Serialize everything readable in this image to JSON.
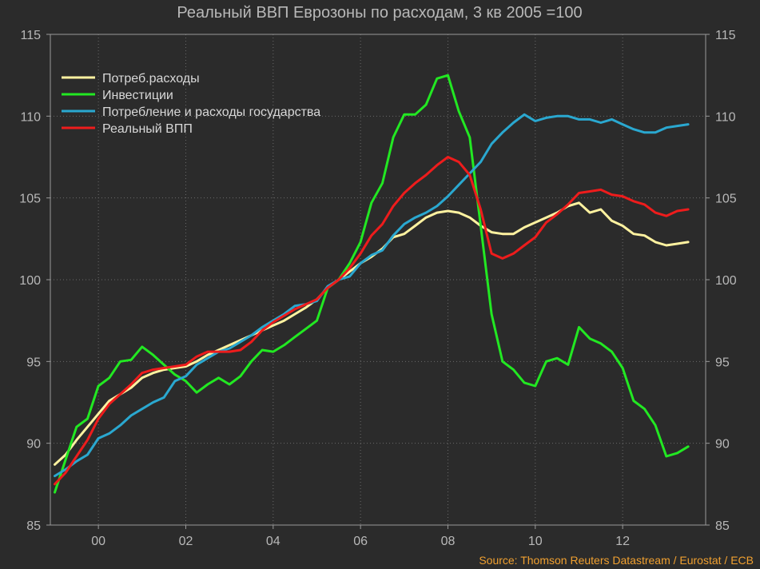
{
  "chart_data": {
    "type": "line",
    "title": "Реальный ВВП Еврозоны по расходам, 3 кв 2005 =100",
    "source": "Source: Thomson Reuters Datastream / Eurostat / ECB",
    "x_ticks": [
      {
        "value": 2000,
        "label": "00"
      },
      {
        "value": 2002,
        "label": "02"
      },
      {
        "value": 2004,
        "label": "04"
      },
      {
        "value": 2006,
        "label": "06"
      },
      {
        "value": 2008,
        "label": "08"
      },
      {
        "value": 2010,
        "label": "10"
      },
      {
        "value": 2012,
        "label": "12"
      }
    ],
    "y_ticks": [
      85,
      90,
      95,
      100,
      105,
      110,
      115
    ],
    "xlim": [
      1998.9,
      2013.9
    ],
    "ylim": [
      85,
      115
    ],
    "grid": true,
    "legend_position": "top-left",
    "series": [
      {
        "name": "Потреб.расходы",
        "color": "#fff2a0",
        "x": [
          1999.0,
          1999.25,
          1999.5,
          1999.75,
          2000.0,
          2000.25,
          2000.5,
          2000.75,
          2001.0,
          2001.25,
          2001.5,
          2001.75,
          2002.0,
          2002.25,
          2002.5,
          2002.75,
          2003.0,
          2003.25,
          2003.5,
          2003.75,
          2004.0,
          2004.25,
          2004.5,
          2004.75,
          2005.0,
          2005.25,
          2005.5,
          2005.75,
          2006.0,
          2006.25,
          2006.5,
          2006.75,
          2007.0,
          2007.25,
          2007.5,
          2007.75,
          2008.0,
          2008.25,
          2008.5,
          2008.75,
          2009.0,
          2009.25,
          2009.5,
          2009.75,
          2010.0,
          2010.25,
          2010.5,
          2010.75,
          2011.0,
          2011.25,
          2011.5,
          2011.75,
          2012.0,
          2012.25,
          2012.5,
          2012.75,
          2013.0,
          2013.25,
          2013.5
        ],
        "values": [
          88.7,
          89.3,
          90.2,
          91.0,
          91.8,
          92.6,
          93.0,
          93.4,
          94.0,
          94.3,
          94.5,
          94.6,
          94.7,
          95.0,
          95.4,
          95.7,
          96.0,
          96.3,
          96.6,
          96.9,
          97.2,
          97.5,
          97.9,
          98.3,
          98.8,
          99.5,
          100.0,
          100.5,
          101.0,
          101.4,
          101.9,
          102.6,
          102.8,
          103.3,
          103.8,
          104.1,
          104.2,
          104.1,
          103.8,
          103.3,
          102.9,
          102.8,
          102.8,
          103.2,
          103.5,
          103.8,
          104.1,
          104.5,
          104.7,
          104.1,
          104.3,
          103.6,
          103.3,
          102.8,
          102.7,
          102.3,
          102.1,
          102.2,
          102.3
        ]
      },
      {
        "name": "Инвестиции",
        "color": "#22e822",
        "x": [
          1999.0,
          1999.25,
          1999.5,
          1999.75,
          2000.0,
          2000.25,
          2000.5,
          2000.75,
          2001.0,
          2001.25,
          2001.5,
          2001.75,
          2002.0,
          2002.25,
          2002.5,
          2002.75,
          2003.0,
          2003.25,
          2003.5,
          2003.75,
          2004.0,
          2004.25,
          2004.5,
          2004.75,
          2005.0,
          2005.25,
          2005.5,
          2005.75,
          2006.0,
          2006.25,
          2006.5,
          2006.75,
          2007.0,
          2007.25,
          2007.5,
          2007.75,
          2008.0,
          2008.25,
          2008.5,
          2008.75,
          2009.0,
          2009.25,
          2009.5,
          2009.75,
          2010.0,
          2010.25,
          2010.5,
          2010.75,
          2011.0,
          2011.25,
          2011.5,
          2011.75,
          2012.0,
          2012.25,
          2012.5,
          2012.75,
          2013.0,
          2013.25,
          2013.5
        ],
        "values": [
          87.0,
          89.0,
          91.0,
          91.5,
          93.5,
          94.0,
          95.0,
          95.1,
          95.9,
          95.4,
          94.8,
          94.2,
          93.8,
          93.1,
          93.6,
          94.0,
          93.6,
          94.1,
          95.0,
          95.7,
          95.6,
          96.0,
          96.5,
          97.0,
          97.5,
          99.5,
          100.0,
          101.0,
          102.3,
          104.7,
          105.9,
          108.7,
          110.1,
          110.1,
          110.7,
          112.3,
          112.5,
          110.3,
          108.7,
          103.3,
          97.9,
          95.0,
          94.5,
          93.7,
          93.5,
          95.0,
          95.2,
          94.8,
          97.1,
          96.4,
          96.1,
          95.6,
          94.6,
          92.6,
          92.1,
          91.1,
          89.2,
          89.4,
          89.8
        ]
      },
      {
        "name": "Потребление и расходы государства",
        "color": "#2aa8d0",
        "x": [
          1999.0,
          1999.25,
          1999.5,
          1999.75,
          2000.0,
          2000.25,
          2000.5,
          2000.75,
          2001.0,
          2001.25,
          2001.5,
          2001.75,
          2002.0,
          2002.25,
          2002.5,
          2002.75,
          2003.0,
          2003.25,
          2003.5,
          2003.75,
          2004.0,
          2004.25,
          2004.5,
          2004.75,
          2005.0,
          2005.25,
          2005.5,
          2005.75,
          2006.0,
          2006.25,
          2006.5,
          2006.75,
          2007.0,
          2007.25,
          2007.5,
          2007.75,
          2008.0,
          2008.25,
          2008.5,
          2008.75,
          2009.0,
          2009.25,
          2009.5,
          2009.75,
          2010.0,
          2010.25,
          2010.5,
          2010.75,
          2011.0,
          2011.25,
          2011.5,
          2011.75,
          2012.0,
          2012.25,
          2012.5,
          2012.75,
          2013.0,
          2013.25,
          2013.5
        ],
        "values": [
          88.0,
          88.4,
          88.9,
          89.3,
          90.3,
          90.6,
          91.1,
          91.7,
          92.1,
          92.5,
          92.8,
          93.8,
          94.1,
          94.8,
          95.2,
          95.6,
          95.8,
          96.2,
          96.6,
          97.1,
          97.5,
          97.9,
          98.4,
          98.5,
          98.7,
          99.6,
          100.0,
          100.2,
          101.0,
          101.5,
          101.8,
          102.7,
          103.4,
          103.8,
          104.1,
          104.5,
          105.1,
          105.8,
          106.5,
          107.2,
          108.3,
          109.0,
          109.6,
          110.1,
          109.7,
          109.9,
          110.0,
          110.0,
          109.8,
          109.8,
          109.6,
          109.8,
          109.5,
          109.2,
          109.0,
          109.0,
          109.3,
          109.4,
          109.5
        ]
      },
      {
        "name": "Реальный ВПП",
        "color": "#ee1c1c",
        "x": [
          1999.0,
          1999.25,
          1999.5,
          1999.75,
          2000.0,
          2000.25,
          2000.5,
          2000.75,
          2001.0,
          2001.25,
          2001.5,
          2001.75,
          2002.0,
          2002.25,
          2002.5,
          2002.75,
          2003.0,
          2003.25,
          2003.5,
          2003.75,
          2004.0,
          2004.25,
          2004.5,
          2004.75,
          2005.0,
          2005.25,
          2005.5,
          2005.75,
          2006.0,
          2006.25,
          2006.5,
          2006.75,
          2007.0,
          2007.25,
          2007.5,
          2007.75,
          2008.0,
          2008.25,
          2008.5,
          2008.75,
          2009.0,
          2009.25,
          2009.5,
          2009.75,
          2010.0,
          2010.25,
          2010.5,
          2010.75,
          2011.0,
          2011.25,
          2011.5,
          2011.75,
          2012.0,
          2012.25,
          2012.5,
          2012.75,
          2013.0,
          2013.25,
          2013.5
        ],
        "values": [
          87.5,
          88.2,
          89.2,
          90.2,
          91.5,
          92.4,
          93.0,
          93.6,
          94.3,
          94.5,
          94.6,
          94.7,
          94.8,
          95.3,
          95.6,
          95.6,
          95.6,
          95.7,
          96.2,
          96.9,
          97.4,
          97.8,
          98.2,
          98.5,
          98.8,
          99.5,
          100.0,
          100.7,
          101.6,
          102.7,
          103.4,
          104.5,
          105.3,
          105.9,
          106.4,
          107.0,
          107.5,
          107.2,
          106.4,
          104.3,
          101.6,
          101.3,
          101.6,
          102.1,
          102.6,
          103.5,
          104.0,
          104.6,
          105.3,
          105.4,
          105.5,
          105.2,
          105.1,
          104.8,
          104.6,
          104.1,
          103.9,
          104.2,
          104.3
        ]
      }
    ]
  }
}
